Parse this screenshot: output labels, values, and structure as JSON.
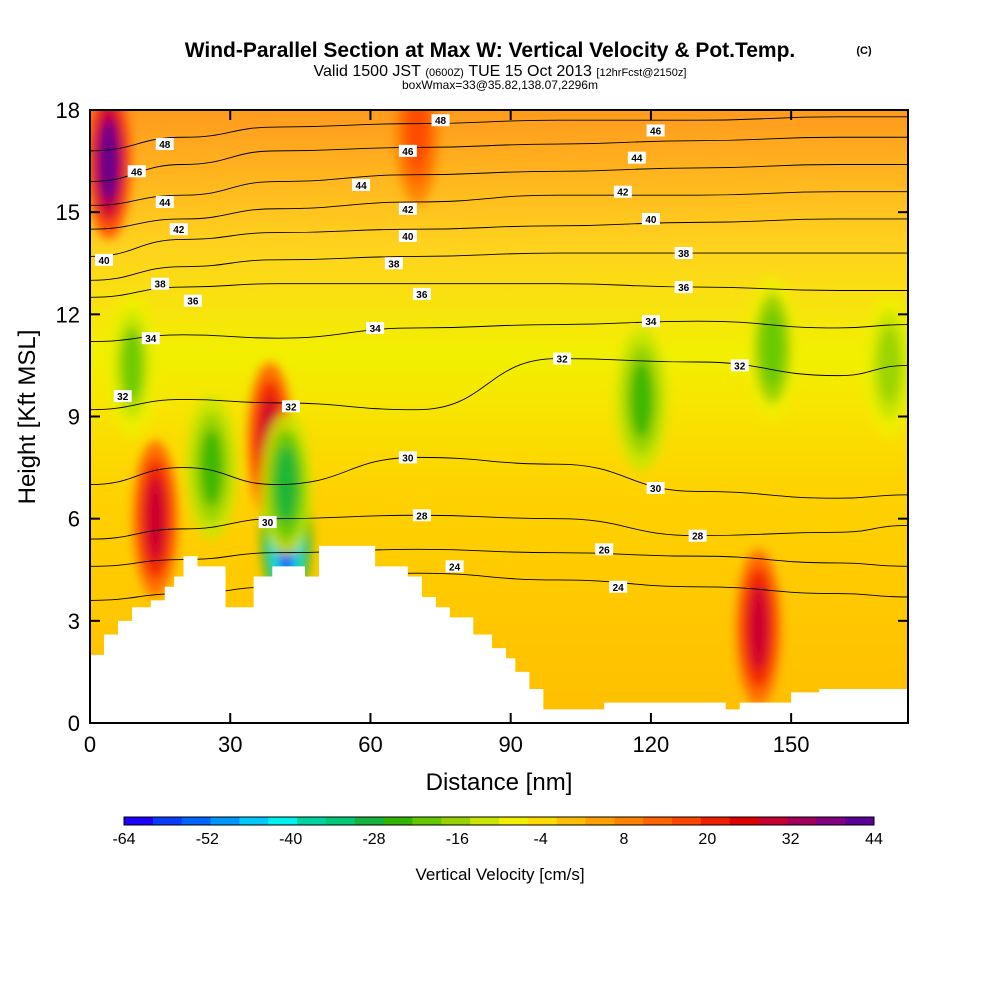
{
  "header": {
    "title": "Wind-Parallel Section at Max W: Vertical Velocity & Pot.Temp.",
    "copyright": "(C)",
    "valid_a": "Valid 1500 JST",
    "valid_b": "(0600Z)",
    "valid_c": "TUE 15 Oct 2013",
    "valid_d": "[12hrFcst@2150z]",
    "box": "boxWmax=33@35.82,138.07,2296m"
  },
  "chart_data": {
    "type": "heatmap",
    "title": "Wind-Parallel Section at Max W: Vertical Velocity & Pot.Temp.",
    "xlabel": "Distance [nm]",
    "ylabel": "Height [Kft MSL]",
    "xlim": [
      0,
      175
    ],
    "ylim": [
      0,
      18
    ],
    "x_ticks": [
      "0",
      "30",
      "60",
      "90",
      "120",
      "150"
    ],
    "y_ticks": [
      "0",
      "3",
      "6",
      "9",
      "12",
      "15",
      "18"
    ],
    "colorbar": {
      "label": "Vertical Velocity [cm/s]",
      "tick_labels": [
        "-64",
        "-52",
        "-40",
        "-28",
        "-16",
        "-4",
        "8",
        "20",
        "32",
        "44"
      ],
      "colors": [
        "#1e00ff",
        "#0a3cff",
        "#0064ff",
        "#0096ff",
        "#00c8ff",
        "#00f0f0",
        "#00d2a0",
        "#00c878",
        "#14b43c",
        "#32b400",
        "#64c800",
        "#96d200",
        "#c8e600",
        "#f0f000",
        "#ffdc00",
        "#ffbe00",
        "#ffa000",
        "#ff8200",
        "#ff6400",
        "#ff4600",
        "#f01e00",
        "#dc0000",
        "#c80032",
        "#a0005a",
        "#820082",
        "#5a0096"
      ]
    },
    "velocity_features": [
      {
        "kind": "updraft",
        "x": 14,
        "y": 6.0,
        "peak": 32
      },
      {
        "kind": "updraft",
        "x": 38.5,
        "y": 8.3,
        "peak": 32
      },
      {
        "kind": "updraft",
        "x": 143,
        "y": 2.8,
        "peak": 32
      },
      {
        "kind": "updraft",
        "x": 4,
        "y": 16.5,
        "peak": 44
      },
      {
        "kind": "updraft",
        "x": 70,
        "y": 17.5,
        "peak": 20
      },
      {
        "kind": "downdraft",
        "x": 42,
        "y": 5.5,
        "peak": -60
      },
      {
        "kind": "downdraft",
        "x": 42,
        "y": 7.0,
        "peak": -28
      },
      {
        "kind": "downdraft",
        "x": 26,
        "y": 7.5,
        "peak": -24
      },
      {
        "kind": "downdraft",
        "x": 9,
        "y": 10.5,
        "peak": -20
      },
      {
        "kind": "downdraft",
        "x": 118,
        "y": 9.5,
        "peak": -24
      },
      {
        "kind": "downdraft",
        "x": 146,
        "y": 11.0,
        "peak": -22
      },
      {
        "kind": "downdraft",
        "x": 171,
        "y": 10.5,
        "peak": -18
      }
    ],
    "theta_contours": [
      {
        "value": 24,
        "x": [
          0,
          20,
          40,
          70,
          100,
          130,
          160,
          175
        ],
        "y": [
          3.6,
          3.8,
          4.0,
          4.4,
          4.2,
          4.0,
          3.8,
          3.7
        ]
      },
      {
        "value": 26,
        "x": [
          0,
          20,
          40,
          70,
          100,
          130,
          160,
          175
        ],
        "y": [
          4.6,
          4.8,
          5.0,
          5.1,
          5.0,
          4.9,
          4.7,
          4.6
        ]
      },
      {
        "value": 28,
        "x": [
          0,
          20,
          40,
          70,
          100,
          130,
          160,
          175
        ],
        "y": [
          5.4,
          5.7,
          6.0,
          6.1,
          6.0,
          5.5,
          5.6,
          5.8
        ]
      },
      {
        "value": 30,
        "x": [
          0,
          20,
          40,
          70,
          100,
          130,
          160,
          175
        ],
        "y": [
          7.0,
          7.5,
          7.0,
          7.8,
          7.6,
          6.8,
          6.6,
          6.7
        ]
      },
      {
        "value": 32,
        "x": [
          0,
          20,
          40,
          70,
          100,
          130,
          160,
          175
        ],
        "y": [
          9.2,
          9.5,
          9.4,
          9.2,
          10.7,
          10.6,
          10.2,
          10.5
        ]
      },
      {
        "value": 34,
        "x": [
          0,
          20,
          40,
          70,
          100,
          130,
          160,
          175
        ],
        "y": [
          11.2,
          11.4,
          11.3,
          11.6,
          11.7,
          11.8,
          11.6,
          11.7
        ]
      },
      {
        "value": 36,
        "x": [
          0,
          20,
          40,
          70,
          100,
          130,
          160,
          175
        ],
        "y": [
          12.5,
          12.8,
          12.9,
          12.9,
          12.9,
          12.8,
          12.7,
          12.7
        ]
      },
      {
        "value": 38,
        "x": [
          0,
          20,
          40,
          70,
          100,
          130,
          160,
          175
        ],
        "y": [
          13.0,
          13.4,
          13.6,
          13.7,
          13.8,
          13.8,
          13.8,
          13.8
        ]
      },
      {
        "value": 40,
        "x": [
          0,
          20,
          40,
          70,
          100,
          130,
          160,
          175
        ],
        "y": [
          13.7,
          14.2,
          14.4,
          14.5,
          14.6,
          14.7,
          14.8,
          14.8
        ]
      },
      {
        "value": 42,
        "x": [
          0,
          20,
          40,
          70,
          100,
          130,
          160,
          175
        ],
        "y": [
          14.5,
          14.8,
          15.1,
          15.3,
          15.5,
          15.5,
          15.6,
          15.6
        ]
      },
      {
        "value": 44,
        "x": [
          0,
          20,
          40,
          70,
          100,
          130,
          160,
          175
        ],
        "y": [
          15.2,
          15.5,
          15.9,
          16.1,
          16.2,
          16.3,
          16.4,
          16.4
        ]
      },
      {
        "value": 46,
        "x": [
          0,
          20,
          40,
          70,
          100,
          130,
          160,
          175
        ],
        "y": [
          15.9,
          16.4,
          16.8,
          16.9,
          17.0,
          17.1,
          17.2,
          17.2
        ]
      },
      {
        "value": 48,
        "x": [
          0,
          20,
          40,
          70,
          100,
          130,
          160,
          175
        ],
        "y": [
          16.8,
          17.2,
          17.5,
          17.6,
          17.7,
          17.7,
          17.8,
          17.8
        ]
      }
    ],
    "contour_labels": [
      {
        "text": "48",
        "x": 16,
        "y": 17.0
      },
      {
        "text": "46",
        "x": 10,
        "y": 16.2
      },
      {
        "text": "44",
        "x": 16,
        "y": 15.3
      },
      {
        "text": "42",
        "x": 19,
        "y": 14.5
      },
      {
        "text": "40",
        "x": 3,
        "y": 13.6
      },
      {
        "text": "38",
        "x": 15,
        "y": 12.9
      },
      {
        "text": "36",
        "x": 22,
        "y": 12.4
      },
      {
        "text": "34",
        "x": 13,
        "y": 11.3
      },
      {
        "text": "32",
        "x": 7,
        "y": 9.6
      },
      {
        "text": "32",
        "x": 43,
        "y": 9.3
      },
      {
        "text": "30",
        "x": 38,
        "y": 5.9
      },
      {
        "text": "48",
        "x": 75,
        "y": 17.7
      },
      {
        "text": "46",
        "x": 68,
        "y": 16.8
      },
      {
        "text": "44",
        "x": 58,
        "y": 15.8
      },
      {
        "text": "42",
        "x": 68,
        "y": 15.1
      },
      {
        "text": "40",
        "x": 68,
        "y": 14.3
      },
      {
        "text": "38",
        "x": 65,
        "y": 13.5
      },
      {
        "text": "36",
        "x": 71,
        "y": 12.6
      },
      {
        "text": "34",
        "x": 61,
        "y": 11.6
      },
      {
        "text": "30",
        "x": 68,
        "y": 7.8
      },
      {
        "text": "28",
        "x": 71,
        "y": 6.1
      },
      {
        "text": "24",
        "x": 78,
        "y": 4.6
      },
      {
        "text": "46",
        "x": 121,
        "y": 17.4
      },
      {
        "text": "44",
        "x": 117,
        "y": 16.6
      },
      {
        "text": "42",
        "x": 114,
        "y": 15.6
      },
      {
        "text": "40",
        "x": 120,
        "y": 14.8
      },
      {
        "text": "38",
        "x": 127,
        "y": 13.8
      },
      {
        "text": "36",
        "x": 127,
        "y": 12.8
      },
      {
        "text": "34",
        "x": 120,
        "y": 11.8
      },
      {
        "text": "32",
        "x": 101,
        "y": 10.7
      },
      {
        "text": "32",
        "x": 139,
        "y": 10.5
      },
      {
        "text": "30",
        "x": 121,
        "y": 6.9
      },
      {
        "text": "28",
        "x": 130,
        "y": 5.5
      },
      {
        "text": "26",
        "x": 110,
        "y": 5.1
      },
      {
        "text": "24",
        "x": 113,
        "y": 4.0
      }
    ],
    "terrain": {
      "x": [
        0,
        3,
        3,
        6,
        6,
        9,
        9,
        13,
        13,
        16,
        16,
        18,
        18,
        20,
        20,
        23,
        23,
        29,
        29,
        33,
        33,
        35,
        35,
        39,
        39,
        40,
        40,
        46,
        46,
        49,
        49,
        52,
        52,
        61,
        61,
        68,
        68,
        71,
        71,
        74,
        74,
        77,
        77,
        82,
        82,
        86,
        86,
        89,
        89,
        91,
        91,
        94,
        94,
        97,
        97,
        110,
        110,
        136,
        136,
        139,
        139,
        150,
        150,
        156,
        156,
        175
      ],
      "y": [
        2.0,
        2.0,
        2.6,
        2.6,
        3.0,
        3.0,
        3.4,
        3.4,
        3.6,
        3.6,
        4.0,
        4.0,
        4.3,
        4.3,
        4.9,
        4.9,
        4.6,
        4.6,
        3.4,
        3.4,
        3.4,
        3.4,
        4.3,
        4.3,
        4.6,
        4.6,
        4.6,
        4.6,
        4.3,
        4.3,
        5.2,
        5.2,
        5.2,
        5.2,
        4.6,
        4.6,
        4.3,
        4.3,
        3.7,
        3.7,
        3.4,
        3.4,
        3.1,
        3.1,
        2.6,
        2.6,
        2.2,
        2.2,
        1.9,
        1.9,
        1.5,
        1.5,
        1.0,
        1.0,
        0.4,
        0.4,
        0.6,
        0.6,
        0.4,
        0.4,
        0.6,
        0.6,
        0.9,
        0.9,
        1.0,
        1.0
      ]
    }
  }
}
